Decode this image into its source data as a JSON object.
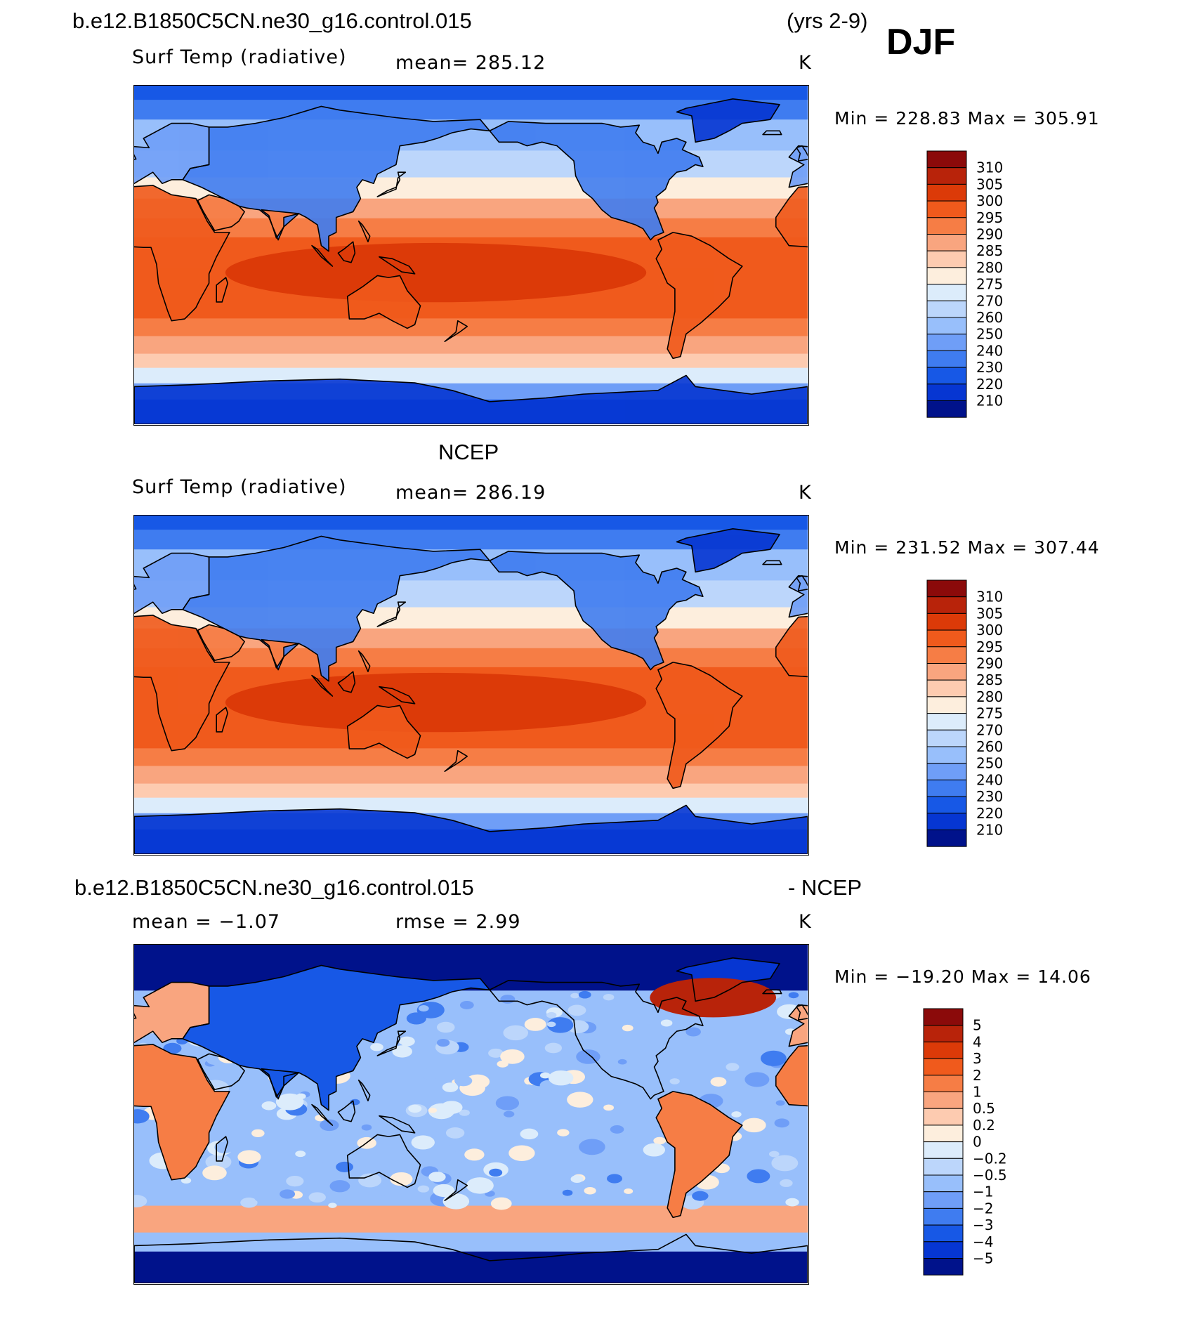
{
  "top": {
    "case_title": "b.e12.B1850C5CN.ne30_g16.control.015",
    "years": "(yrs 2-9)",
    "season": "DJF",
    "variable": "Surf Temp (radiative)",
    "mean_label": "mean=  285.12",
    "units": "K",
    "minmax": "Min  =  228.83  Max  =  305.91",
    "levels": [
      "310",
      "305",
      "300",
      "295",
      "290",
      "285",
      "280",
      "275",
      "270",
      "260",
      "250",
      "240",
      "230",
      "220",
      "210"
    ]
  },
  "middle": {
    "title": "NCEP",
    "variable": "Surf Temp (radiative)",
    "mean_label": "mean=  286.19",
    "units": "K",
    "minmax": "Min  =  231.52  Max  =  307.44",
    "levels": [
      "310",
      "305",
      "300",
      "295",
      "290",
      "285",
      "280",
      "275",
      "270",
      "260",
      "250",
      "240",
      "230",
      "220",
      "210"
    ]
  },
  "bottom": {
    "case_title": "b.e12.B1850C5CN.ne30_g16.control.015",
    "minus_label": "- NCEP",
    "mean_label": "mean  =    −1.07",
    "rmse_label": "rmse  =      2.99",
    "units": "K",
    "minmax": "Min  =  −19.20  Max  =     14.06",
    "levels": [
      "5",
      "4",
      "3",
      "2",
      "1",
      "0.5",
      "0.2",
      "0",
      "−0.2",
      "−0.5",
      "−1",
      "−2",
      "−3",
      "−4",
      "−5"
    ]
  },
  "colors": {
    "abs_scale": [
      "#8b0a0a",
      "#b8230a",
      "#dc3a08",
      "#f05a1c",
      "#f67d45",
      "#f9a57f",
      "#fdcbb0",
      "#fdeedd",
      "#dcecfb",
      "#bcd6fb",
      "#98bffb",
      "#6f9ef7",
      "#3f7cf0",
      "#1758e6",
      "#0636d2",
      "#00128b"
    ],
    "diff_scale": [
      "#8b0a0a",
      "#b8230a",
      "#dc3a08",
      "#f05a1c",
      "#f67d45",
      "#f9a57f",
      "#fdcbb0",
      "#fdeedd",
      "#dcecfb",
      "#bcd6fb",
      "#98bffb",
      "#6f9ef7",
      "#3f7cf0",
      "#1758e6",
      "#0636d2",
      "#00128b"
    ]
  }
}
